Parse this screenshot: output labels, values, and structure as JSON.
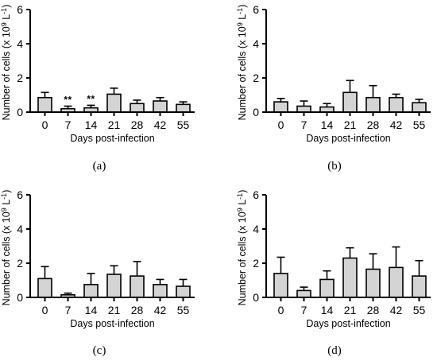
{
  "chart_data": [
    {
      "panel": "(a)",
      "type": "bar",
      "categories": [
        "0",
        "7",
        "14",
        "21",
        "28",
        "42",
        "55"
      ],
      "values": [
        0.85,
        0.2,
        0.25,
        1.05,
        0.5,
        0.65,
        0.45
      ],
      "errors": [
        0.3,
        0.15,
        0.15,
        0.35,
        0.2,
        0.2,
        0.15
      ],
      "annotations": [
        "",
        "**",
        "**",
        "",
        "",
        "",
        ""
      ],
      "xlabel": "Days post-infection",
      "ylabel_prefix": "Number of cells (x 10",
      "ylabel_exp1": "9",
      "ylabel_mid": " L",
      "ylabel_exp2": "-1",
      "ylabel_suffix": ")",
      "ylim": [
        0,
        6
      ],
      "yticks": [
        "0",
        "2",
        "4",
        "6"
      ]
    },
    {
      "panel": "(b)",
      "type": "bar",
      "categories": [
        "0",
        "7",
        "14",
        "21",
        "28",
        "42",
        "55"
      ],
      "values": [
        0.6,
        0.35,
        0.3,
        1.15,
        0.85,
        0.85,
        0.55
      ],
      "errors": [
        0.2,
        0.3,
        0.2,
        0.7,
        0.7,
        0.2,
        0.2
      ],
      "annotations": [
        "",
        "",
        "",
        "",
        "",
        "",
        ""
      ],
      "xlabel": "Days post-infection",
      "ylabel_prefix": "Number of cells (x 10",
      "ylabel_exp1": "9",
      "ylabel_mid": " L",
      "ylabel_exp2": "-1",
      "ylabel_suffix": ")",
      "ylim": [
        0,
        6
      ],
      "yticks": [
        "0",
        "2",
        "4",
        "6"
      ]
    },
    {
      "panel": "(c)",
      "type": "bar",
      "categories": [
        "0",
        "7",
        "14",
        "21",
        "28",
        "42",
        "55"
      ],
      "values": [
        1.1,
        0.15,
        0.75,
        1.35,
        1.25,
        0.75,
        0.65
      ],
      "errors": [
        0.7,
        0.1,
        0.65,
        0.5,
        0.85,
        0.3,
        0.4
      ],
      "annotations": [
        "",
        "",
        "",
        "",
        "",
        "",
        ""
      ],
      "xlabel": "Days post-infection",
      "ylabel_prefix": "Number of cells (x 10",
      "ylabel_exp1": "9",
      "ylabel_mid": " L",
      "ylabel_exp2": "-1",
      "ylabel_suffix": ")",
      "ylim": [
        0,
        6
      ],
      "yticks": [
        "0",
        "2",
        "4",
        "6"
      ]
    },
    {
      "panel": "(d)",
      "type": "bar",
      "categories": [
        "0",
        "7",
        "14",
        "21",
        "28",
        "42",
        "55"
      ],
      "values": [
        1.4,
        0.4,
        1.05,
        2.3,
        1.65,
        1.75,
        1.25
      ],
      "errors": [
        0.95,
        0.2,
        0.5,
        0.6,
        0.9,
        1.2,
        0.9
      ],
      "annotations": [
        "",
        "",
        "",
        "",
        "",
        "",
        ""
      ],
      "xlabel": "Days post-infection",
      "ylabel_prefix": "Number of cells (x 10",
      "ylabel_exp1": "9",
      "ylabel_mid": " L",
      "ylabel_exp2": "-1",
      "ylabel_suffix": ")",
      "ylim": [
        0,
        6
      ],
      "yticks": [
        "0",
        "2",
        "4",
        "6"
      ]
    }
  ]
}
